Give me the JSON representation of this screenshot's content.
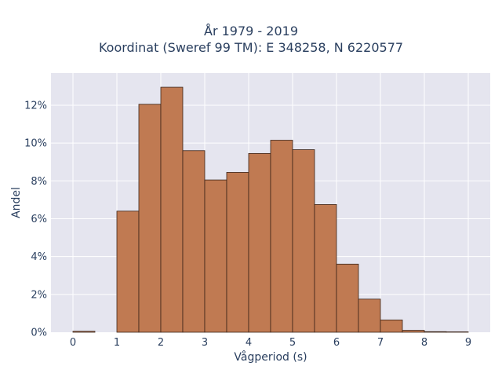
{
  "chart_data": {
    "type": "bar",
    "title_lines": [
      "År 1979 - 2019",
      "Koordinat (Sweref 99 TM): E 348258, N 6220577"
    ],
    "xlabel": "Vågperiod (s)",
    "ylabel": "Andel",
    "bin_width": 0.5,
    "bin_starts": [
      0,
      0.5,
      1,
      1.5,
      2,
      2.5,
      3,
      3.5,
      4,
      4.5,
      5,
      5.5,
      6,
      6.5,
      7,
      7.5,
      8,
      8.5
    ],
    "values": [
      0.05,
      0,
      6.4,
      12.05,
      12.95,
      9.6,
      8.05,
      8.45,
      9.45,
      10.15,
      9.65,
      6.75,
      3.6,
      1.75,
      0.65,
      0.1,
      0.03,
      0.02
    ],
    "xlim": [
      -0.5,
      9.5
    ],
    "ylim": [
      0,
      13.7
    ],
    "x_ticks": [
      0,
      1,
      2,
      3,
      4,
      5,
      6,
      7,
      8,
      9
    ],
    "x_tick_labels": [
      "0",
      "1",
      "2",
      "3",
      "4",
      "5",
      "6",
      "7",
      "8",
      "9"
    ],
    "y_ticks": [
      0,
      2,
      4,
      6,
      8,
      10,
      12
    ],
    "y_tick_labels": [
      "0%",
      "2%",
      "4%",
      "6%",
      "8%",
      "10%",
      "12%"
    ],
    "grid": true,
    "bar_color": "#c07a52",
    "bar_edge_color": "#3b2418",
    "plot_bg": "#e5e5ef"
  }
}
